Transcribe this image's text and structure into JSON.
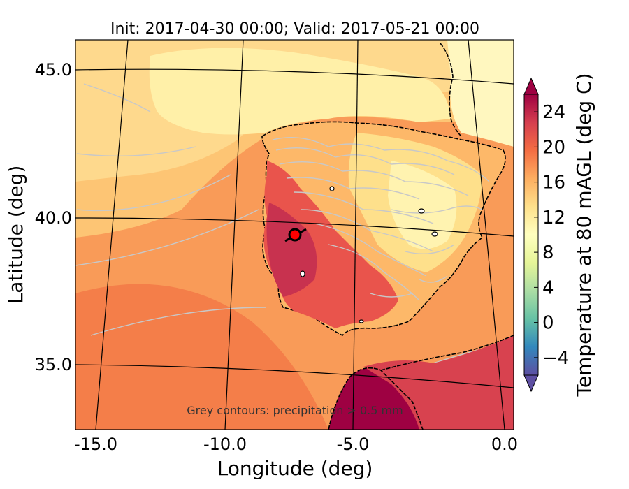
{
  "title": "Init: 2017-04-30 00:00; Valid: 2017-05-21 00:00",
  "xlabel": "Longitude (deg)",
  "ylabel": "Latitude (deg)",
  "x_ticks": [
    "-15.0",
    "-10.0",
    "-5.0",
    "0.0"
  ],
  "y_ticks": [
    "45.0",
    "40.0",
    "35.0"
  ],
  "colorbar": {
    "label": "Temperature at 80 mAGL (deg C)",
    "ticks": [
      "24",
      "20",
      "16",
      "12",
      "8",
      "4",
      "0",
      "−4"
    ],
    "range": [
      -6,
      26
    ],
    "extend": "both",
    "colormap": [
      "#5e4fa2",
      "#3288bd",
      "#66c2a5",
      "#abdda4",
      "#e6f598",
      "#ffffbf",
      "#fee08b",
      "#fdae61",
      "#f46d43",
      "#d53e4f",
      "#9e0142"
    ]
  },
  "annotation": "Grey contours: precipitation > 0.5 mm",
  "marker": {
    "longitude": -7.7,
    "latitude": 39.4,
    "color": "#ff0000"
  },
  "map_region": {
    "lon_range": [
      -16,
      0.5
    ],
    "lat_range": [
      32.5,
      46
    ]
  },
  "colors": {
    "cool_land": "#fff3b0",
    "warm_sea": "#f78a4a",
    "hot_land": "#c83a4e",
    "precip_contours": "#c8c8c8",
    "coastline": "#000000",
    "graticule": "#000000"
  }
}
